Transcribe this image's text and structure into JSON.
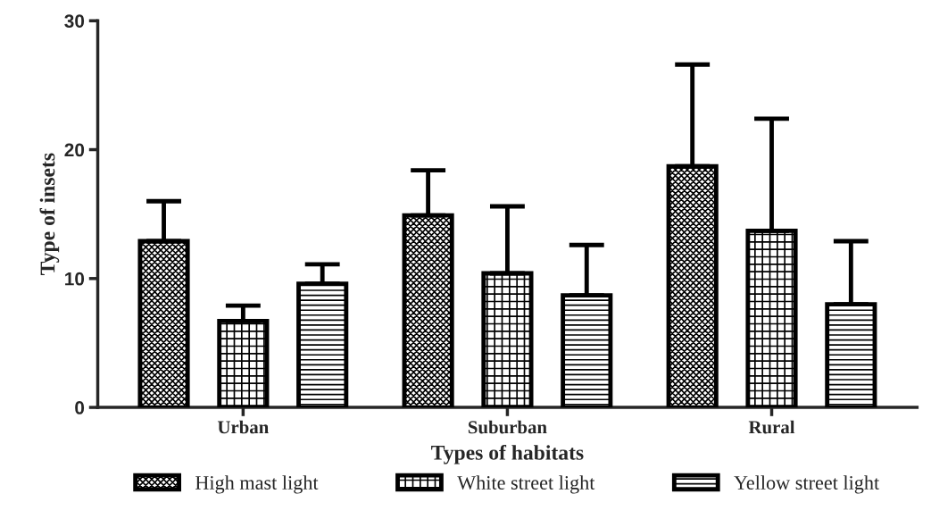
{
  "chart_data": {
    "type": "bar",
    "xlabel": "Types of habitats",
    "ylabel": "Type of insets",
    "categories": [
      "Urban",
      "Suburban",
      "Rural"
    ],
    "series": [
      {
        "name": "High mast light",
        "color": "#000000",
        "values": [
          12.9,
          14.9,
          18.7
        ],
        "errors": [
          [
            12.9,
            16.0
          ],
          [
            14.9,
            18.4
          ],
          [
            18.7,
            26.6
          ]
        ]
      },
      {
        "name": "White street light",
        "color": "#000000",
        "values": [
          6.7,
          10.4,
          13.7
        ],
        "errors": [
          [
            6.7,
            7.9
          ],
          [
            10.4,
            15.6
          ],
          [
            13.7,
            22.4
          ]
        ]
      },
      {
        "name": "Yellow street light",
        "color": "#000000",
        "values": [
          9.6,
          8.7,
          8.0
        ],
        "errors": [
          [
            9.6,
            11.1
          ],
          [
            8.7,
            12.6
          ],
          [
            8.0,
            12.9
          ]
        ]
      }
    ],
    "ylim": [
      0,
      30
    ],
    "yticks": [
      0,
      10,
      20,
      30
    ],
    "grid": false,
    "legend": "bottom"
  }
}
